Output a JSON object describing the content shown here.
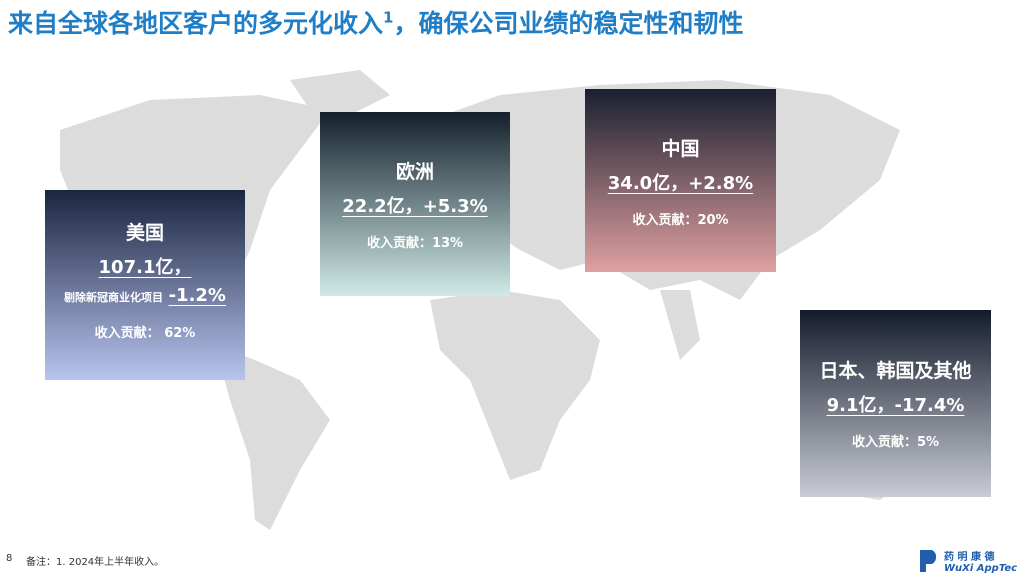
{
  "header": {
    "title": "来自全球各地区客户的多元化收入",
    "title_sup": "1",
    "title_rest": "，确保公司业绩的稳定性和韧性"
  },
  "regions": [
    {
      "name": "美国",
      "revenue": "107.1亿，",
      "note": "剔除新冠商业化项目",
      "growth": "-1.2%",
      "share": "收入贡献： 62%"
    },
    {
      "name": "欧洲",
      "revenue": "22.2亿，+5.3%",
      "share": "收入贡献：13%"
    },
    {
      "name": "中国",
      "revenue": "34.0亿，+2.8%",
      "share": "收入贡献：20%"
    },
    {
      "name": "日本、韩国及其他",
      "revenue": "9.1亿，-17.4%",
      "share": "收入贡献：5%"
    }
  ],
  "footer": {
    "page": "8",
    "note": "备注：1. 2024年上半年收入。",
    "logo_cn": "药 明 康 德",
    "logo_en": "WuXi AppTec"
  }
}
